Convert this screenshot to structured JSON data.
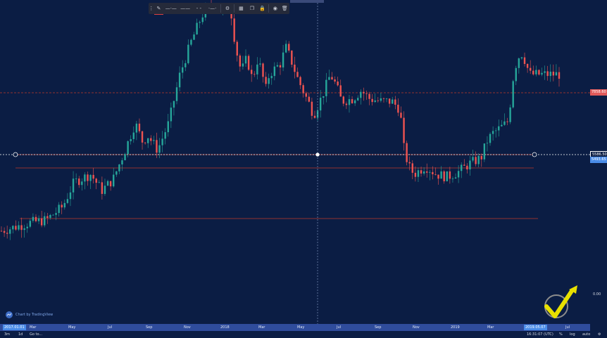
{
  "colors": {
    "background": "#0b1d44",
    "bull": "#26a69a",
    "bear": "#ef5350",
    "level_line": "#c0392b",
    "price_tag_red": "#e05a5a",
    "price_tag_blue": "#4a8ce8",
    "axis_bar": "#2f4c9c",
    "toolbar": "#252a3a"
  },
  "toolbar": {
    "buttons": [
      {
        "name": "drag-handle-icon",
        "glyph": "⋮"
      },
      {
        "name": "pencil-icon",
        "glyph": "✎"
      },
      {
        "name": "line-style-solid-icon",
        "glyph": "—·—"
      },
      {
        "name": "line-width-icon",
        "glyph": "——"
      },
      {
        "name": "line-style-dashed-icon",
        "glyph": "- -"
      },
      {
        "name": "line-extend-icon",
        "glyph": "·—·"
      },
      {
        "name": "gear-icon",
        "glyph": "⚙"
      },
      {
        "name": "template-icon",
        "glyph": "▦"
      },
      {
        "name": "clone-icon",
        "glyph": "❐"
      },
      {
        "name": "lock-icon",
        "glyph": "🔒"
      },
      {
        "name": "eye-icon",
        "glyph": "◉"
      },
      {
        "name": "trash-icon",
        "glyph": "🗑"
      }
    ]
  },
  "price_scale": {
    "tags": [
      {
        "label": "7858.60",
        "color": "#e05a5a"
      },
      {
        "label": "5586.50",
        "color": "#0b1d44"
      },
      {
        "label": "5493.65",
        "color": "#4a8ce8"
      }
    ],
    "zero_label": "0.00"
  },
  "time_axis": {
    "ticks": [
      "Mar",
      "May",
      "Jul",
      "Sep",
      "Nov",
      "2018",
      "Mar",
      "May",
      "Jul",
      "Sep",
      "Nov",
      "2019",
      "Mar",
      "Jul"
    ],
    "start_tag": "2017.01.01",
    "end_tag": "2019.05.07"
  },
  "bottom_bar": {
    "range_3m": "3m",
    "range_1d": "1d",
    "goto": "Go to...",
    "clock": "16:31:07 (UTC)",
    "percent": "%",
    "log": "log",
    "auto": "auto"
  },
  "branding": {
    "text": "Chart by TradingView"
  },
  "chart_data": {
    "type": "candlestick",
    "title": "",
    "horizontal_levels": [
      "7858.60",
      "5586.50",
      "5493.65"
    ],
    "x_range": [
      "2017.01.01",
      "2019.05.07"
    ],
    "trend_path": [
      [
        0.0,
        0.16
      ],
      [
        0.05,
        0.19
      ],
      [
        0.08,
        0.2
      ],
      [
        0.11,
        0.25
      ],
      [
        0.13,
        0.34
      ],
      [
        0.16,
        0.37
      ],
      [
        0.18,
        0.31
      ],
      [
        0.2,
        0.35
      ],
      [
        0.22,
        0.45
      ],
      [
        0.24,
        0.56
      ],
      [
        0.255,
        0.48
      ],
      [
        0.26,
        0.52
      ],
      [
        0.28,
        0.46
      ],
      [
        0.3,
        0.56
      ],
      [
        0.32,
        0.74
      ],
      [
        0.34,
        0.86
      ],
      [
        0.36,
        0.96
      ],
      [
        0.38,
        1.0
      ],
      [
        0.4,
        0.97
      ],
      [
        0.41,
        1.0
      ],
      [
        0.42,
        0.84
      ],
      [
        0.43,
        0.75
      ],
      [
        0.44,
        0.8
      ],
      [
        0.45,
        0.72
      ],
      [
        0.46,
        0.8
      ],
      [
        0.475,
        0.68
      ],
      [
        0.48,
        0.74
      ],
      [
        0.5,
        0.78
      ],
      [
        0.51,
        0.84
      ],
      [
        0.52,
        0.79
      ],
      [
        0.53,
        0.73
      ],
      [
        0.545,
        0.66
      ],
      [
        0.55,
        0.64
      ],
      [
        0.56,
        0.59
      ],
      [
        0.575,
        0.66
      ],
      [
        0.59,
        0.74
      ],
      [
        0.6,
        0.7
      ],
      [
        0.61,
        0.64
      ],
      [
        0.63,
        0.65
      ],
      [
        0.645,
        0.68
      ],
      [
        0.66,
        0.65
      ],
      [
        0.68,
        0.64
      ],
      [
        0.7,
        0.64
      ],
      [
        0.715,
        0.61
      ],
      [
        0.72,
        0.48
      ],
      [
        0.73,
        0.4
      ],
      [
        0.74,
        0.37
      ],
      [
        0.76,
        0.4
      ],
      [
        0.78,
        0.37
      ],
      [
        0.8,
        0.36
      ],
      [
        0.82,
        0.38
      ],
      [
        0.84,
        0.41
      ],
      [
        0.86,
        0.43
      ],
      [
        0.87,
        0.49
      ],
      [
        0.88,
        0.52
      ],
      [
        0.9,
        0.55
      ],
      [
        0.91,
        0.57
      ],
      [
        0.915,
        0.7
      ],
      [
        0.925,
        0.8
      ],
      [
        0.935,
        0.82
      ],
      [
        0.94,
        0.78
      ],
      [
        0.948,
        0.74
      ]
    ]
  }
}
